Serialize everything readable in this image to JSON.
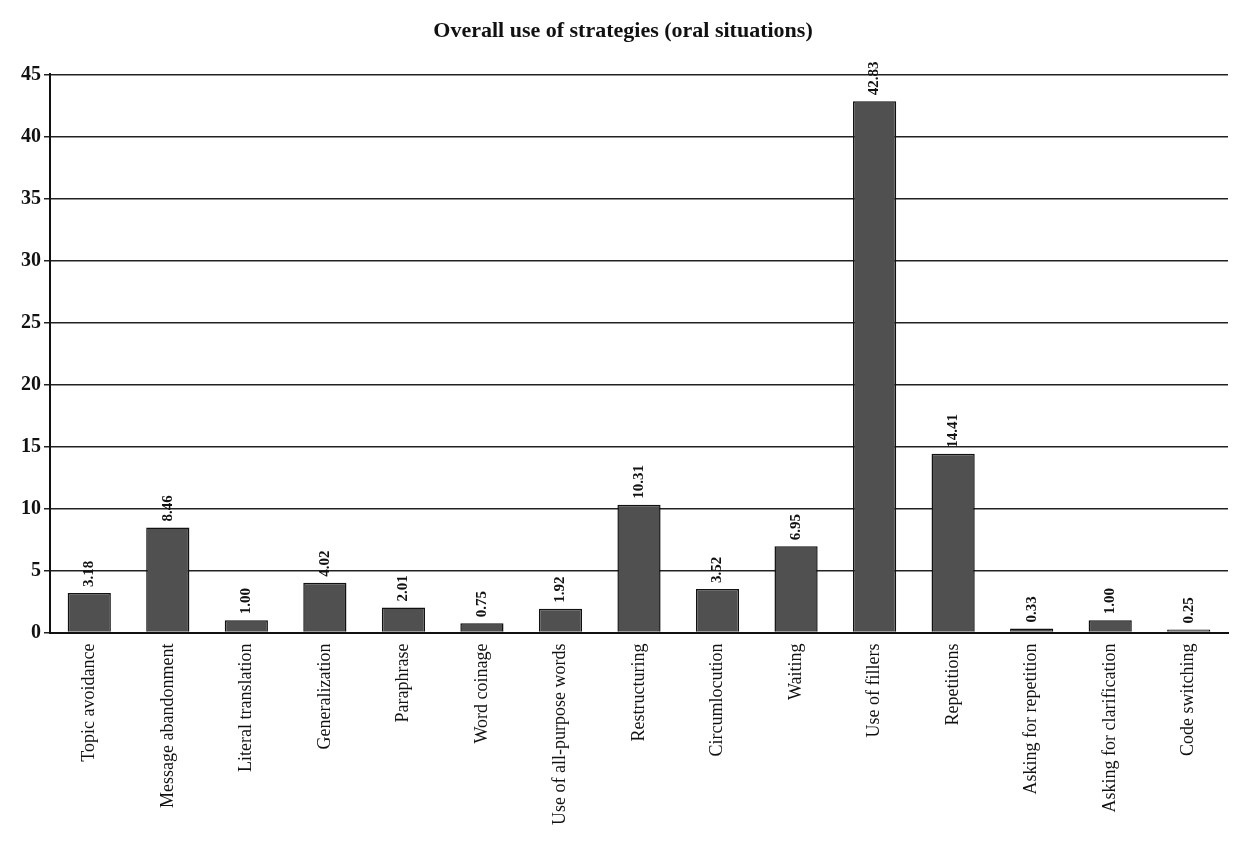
{
  "chart_data": {
    "type": "bar",
    "title": "Overall use of strategies (oral situations)",
    "categories": [
      "Topic avoidance",
      "Message abandonment",
      "Literal translation",
      "Generalization",
      "Paraphrase",
      "Word coinage",
      "Use of all-purpose words",
      "Restructuring",
      "Circumlocution",
      "Waiting",
      "Use of fillers",
      "Repetitions",
      "Asking for repetition",
      "Asking for clarification",
      "Code switching"
    ],
    "values": [
      3.18,
      8.46,
      1.0,
      4.02,
      2.01,
      0.75,
      1.92,
      10.31,
      3.52,
      6.95,
      42.83,
      14.41,
      0.33,
      1.0,
      0.25
    ],
    "value_labels": [
      "3.18",
      "8.46",
      "1.00",
      "4.02",
      "2.01",
      "0.75",
      "1.92",
      "10.31",
      "3.52",
      "6.95",
      "42.83",
      "14.41",
      "0.33",
      "1.00",
      "0.25"
    ],
    "color": "#505050",
    "ylim": [
      0,
      45
    ],
    "yticks": [
      0,
      5,
      10,
      15,
      20,
      25,
      30,
      35,
      40,
      45
    ],
    "grid": "y",
    "legend": false
  }
}
